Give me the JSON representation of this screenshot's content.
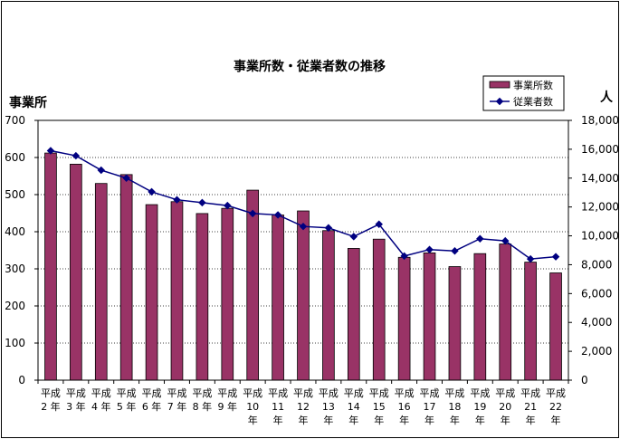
{
  "chart_data": {
    "type": "bar",
    "title": "事業所数・従業者数の推移",
    "y_left_label": "事業所",
    "y_right_label": "人",
    "y_left_lim": [
      0,
      700
    ],
    "y_left_ticks": [
      "0",
      "100",
      "200",
      "300",
      "400",
      "500",
      "600",
      "700"
    ],
    "y_right_lim": [
      0,
      18000
    ],
    "y_right_ticks": [
      "0",
      "2,000",
      "4,000",
      "6,000",
      "8,000",
      "10,000",
      "12,000",
      "14,000",
      "16,000",
      "18,000"
    ],
    "grid": "horizontal dotted",
    "legend_placement": "top-right",
    "categories": [
      [
        "平成",
        "2",
        "年"
      ],
      [
        "平成",
        "3",
        "年"
      ],
      [
        "平成",
        "4",
        "年"
      ],
      [
        "平成",
        "5",
        "年"
      ],
      [
        "平成",
        "6",
        "年"
      ],
      [
        "平成",
        "7",
        "年"
      ],
      [
        "平成",
        "8",
        "年"
      ],
      [
        "平成",
        "9",
        "年"
      ],
      [
        "平成",
        "10",
        "年"
      ],
      [
        "平成",
        "11",
        "年"
      ],
      [
        "平成",
        "12",
        "年"
      ],
      [
        "平成",
        "13",
        "年"
      ],
      [
        "平成",
        "14",
        "年"
      ],
      [
        "平成",
        "15",
        "年"
      ],
      [
        "平成",
        "16",
        "年"
      ],
      [
        "平成",
        "17",
        "年"
      ],
      [
        "平成",
        "18",
        "年"
      ],
      [
        "平成",
        "19",
        "年"
      ],
      [
        "平成",
        "20",
        "年"
      ],
      [
        "平成",
        "21",
        "年"
      ],
      [
        "平成",
        "22",
        "年"
      ]
    ],
    "series": [
      {
        "name": "事業所数",
        "type": "bar",
        "axis": "left",
        "color": "#993366",
        "values": [
          612,
          582,
          530,
          554,
          473,
          481,
          449,
          463,
          512,
          445,
          456,
          403,
          355,
          380,
          331,
          343,
          306,
          341,
          367,
          318,
          289
        ]
      },
      {
        "name": "従業者数",
        "type": "line",
        "axis": "right",
        "color": "#000080",
        "values": [
          15900,
          15550,
          14550,
          14000,
          13050,
          12500,
          12300,
          12100,
          11550,
          11450,
          10650,
          10550,
          9950,
          10800,
          8600,
          9050,
          8950,
          9800,
          9650,
          8400,
          8550
        ]
      }
    ]
  }
}
